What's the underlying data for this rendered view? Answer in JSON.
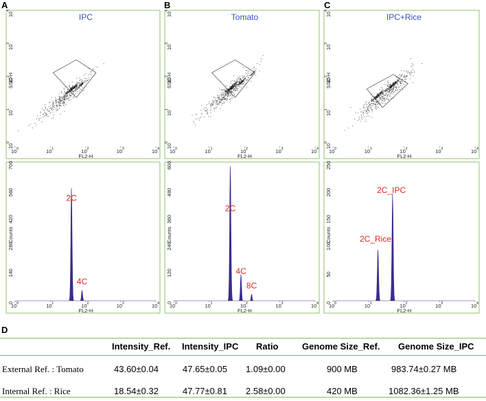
{
  "colors": {
    "panel_border": "#8cc46a",
    "title_blue": "#3a4fb5",
    "annot_red": "#e0261f",
    "hist_fill": "#3c2c8c",
    "dot": "#111111",
    "rule_green": "#7fbf5a"
  },
  "chart_data": [
    {
      "panel": "A",
      "type": "scatter",
      "title": "IPC",
      "xlabel": "FL2-H",
      "ylabel": "SSC-H",
      "x_scale": "log",
      "y_scale": "log",
      "xlim": [
        1,
        10000
      ],
      "ylim": [
        1,
        10000
      ],
      "x_ticks": [
        "10",
        "10",
        "10",
        "10",
        "10"
      ],
      "x_tick_exps": [
        "0",
        "1",
        "2",
        "3",
        "4"
      ],
      "y_ticks": [
        "10",
        "10",
        "10",
        "10",
        "10"
      ],
      "y_tick_exps": [
        "0",
        "1",
        "2",
        "3",
        "4"
      ],
      "gate": [
        [
          12,
          170
        ],
        [
          55,
          420
        ],
        [
          200,
          170
        ],
        [
          55,
          30
        ]
      ],
      "clusters": [
        {
          "x": 40,
          "y": 55,
          "spread": 0.08,
          "n": 120
        },
        {
          "x": 78,
          "y": 78,
          "spread": 0.05,
          "n": 40
        },
        {
          "x": 25,
          "y": 30,
          "spread": 0.35,
          "n": 380
        }
      ]
    },
    {
      "panel": "B",
      "type": "scatter",
      "title": "Tomato",
      "xlabel": "FL2-H",
      "ylabel": "SSC-H",
      "x_scale": "log",
      "y_scale": "log",
      "xlim": [
        1,
        10000
      ],
      "ylim": [
        1,
        10000
      ],
      "x_ticks": [
        "10",
        "10",
        "10",
        "10",
        "10"
      ],
      "x_tick_exps": [
        "0",
        "1",
        "2",
        "3",
        "4"
      ],
      "y_ticks": [
        "10",
        "10",
        "10",
        "10",
        "10"
      ],
      "y_tick_exps": [
        "0",
        "1",
        "2",
        "3",
        "4"
      ],
      "gate": [
        [
          12,
          170
        ],
        [
          55,
          420
        ],
        [
          200,
          170
        ],
        [
          55,
          30
        ]
      ],
      "clusters": [
        {
          "x": 42,
          "y": 60,
          "spread": 0.08,
          "n": 130
        },
        {
          "x": 85,
          "y": 95,
          "spread": 0.05,
          "n": 50
        },
        {
          "x": 160,
          "y": 160,
          "spread": 0.05,
          "n": 25
        },
        {
          "x": 35,
          "y": 45,
          "spread": 0.35,
          "n": 420
        }
      ]
    },
    {
      "panel": "C",
      "type": "scatter",
      "title": "IPC+Rice",
      "xlabel": "FL2-H",
      "ylabel": "SSC-H",
      "x_scale": "log",
      "y_scale": "log",
      "xlim": [
        1,
        10000
      ],
      "ylim": [
        1,
        10000
      ],
      "x_ticks": [
        "10",
        "10",
        "10",
        "10",
        "10"
      ],
      "x_tick_exps": [
        "0",
        "1",
        "2",
        "3",
        "4"
      ],
      "y_ticks": [
        "10",
        "10",
        "10",
        "10",
        "10"
      ],
      "y_tick_exps": [
        "0",
        "1",
        "2",
        "3",
        "4"
      ],
      "gate": [
        [
          9,
          55
        ],
        [
          50,
          150
        ],
        [
          130,
          80
        ],
        [
          25,
          15
        ]
      ],
      "clusters": [
        {
          "x": 18,
          "y": 35,
          "spread": 0.08,
          "n": 120
        },
        {
          "x": 48,
          "y": 75,
          "spread": 0.07,
          "n": 110
        },
        {
          "x": 30,
          "y": 40,
          "spread": 0.38,
          "n": 420
        }
      ]
    },
    {
      "panel": "A",
      "type": "area",
      "xlabel": "FL2-H",
      "ylabel": "Counts",
      "x_scale": "log",
      "xlim": [
        1,
        10000
      ],
      "ylim": [
        0,
        700
      ],
      "y_ticks": [
        "0",
        "140",
        "280",
        "420",
        "560",
        "700"
      ],
      "x_ticks": [
        "10",
        "10",
        "10",
        "10",
        "10"
      ],
      "x_tick_exps": [
        "0",
        "1",
        "2",
        "3",
        "4"
      ],
      "peaks": [
        {
          "x": 40,
          "height": 590,
          "width": 0.018
        },
        {
          "x": 80,
          "height": 55,
          "width": 0.016
        }
      ],
      "labels": [
        {
          "text": "2C",
          "x": 40,
          "y": 520
        },
        {
          "text": "4C",
          "x": 80,
          "y": 85
        }
      ]
    },
    {
      "panel": "B",
      "type": "area",
      "xlabel": "FL2-H",
      "ylabel": "Counts",
      "x_scale": "log",
      "xlim": [
        1,
        10000
      ],
      "ylim": [
        0,
        600
      ],
      "y_ticks": [
        "0",
        "120",
        "240",
        "360",
        "480",
        "600"
      ],
      "x_ticks": [
        "10",
        "10",
        "10",
        "10",
        "10"
      ],
      "x_tick_exps": [
        "0",
        "1",
        "2",
        "3",
        "4"
      ],
      "peaks": [
        {
          "x": 40,
          "height": 610,
          "width": 0.018
        },
        {
          "x": 80,
          "height": 120,
          "width": 0.016
        },
        {
          "x": 160,
          "height": 30,
          "width": 0.014
        }
      ],
      "labels": [
        {
          "text": "2C",
          "x": 40,
          "y": 400
        },
        {
          "text": "4C",
          "x": 80,
          "y": 120
        },
        {
          "text": "8C",
          "x": 160,
          "y": 55
        }
      ]
    },
    {
      "panel": "C",
      "type": "area",
      "xlabel": "FL2-H",
      "ylabel": "Counts",
      "x_scale": "log",
      "xlim": [
        1,
        10000
      ],
      "ylim": [
        0,
        250
      ],
      "y_ticks": [
        "0",
        "50",
        "100",
        "150",
        "200",
        "250"
      ],
      "x_ticks": [
        "10",
        "10",
        "10",
        "10",
        "10"
      ],
      "x_tick_exps": [
        "0",
        "1",
        "2",
        "3",
        "4"
      ],
      "peaks": [
        {
          "x": 18.5,
          "height": 95,
          "width": 0.018
        },
        {
          "x": 47.8,
          "height": 200,
          "width": 0.018
        }
      ],
      "labels": [
        {
          "text": "2C_Rice",
          "x": 18.5,
          "y": 110
        },
        {
          "text": "2C_IPC",
          "x": 47.8,
          "y": 200
        }
      ]
    }
  ],
  "panel_letters": [
    "A",
    "B",
    "C"
  ],
  "table": {
    "label": "D",
    "headers": [
      "Intensity_Ref.",
      "Intensity_IPC",
      "Ratio",
      "Genome Size_Ref.",
      "Genome Size_IPC"
    ],
    "rows": [
      {
        "label": "External Ref. : Tomato",
        "cells": [
          "43.60±0.04",
          "47.65±0.05",
          "1.09±0.00",
          "900 MB",
          "983.74±0.27 MB"
        ]
      },
      {
        "label": "Internal Ref. : Rice",
        "cells": [
          "18.54±0.32",
          "47.77±0.81",
          "2.58±0.00",
          "420 MB",
          "1082.36±1.25 MB"
        ]
      }
    ]
  }
}
